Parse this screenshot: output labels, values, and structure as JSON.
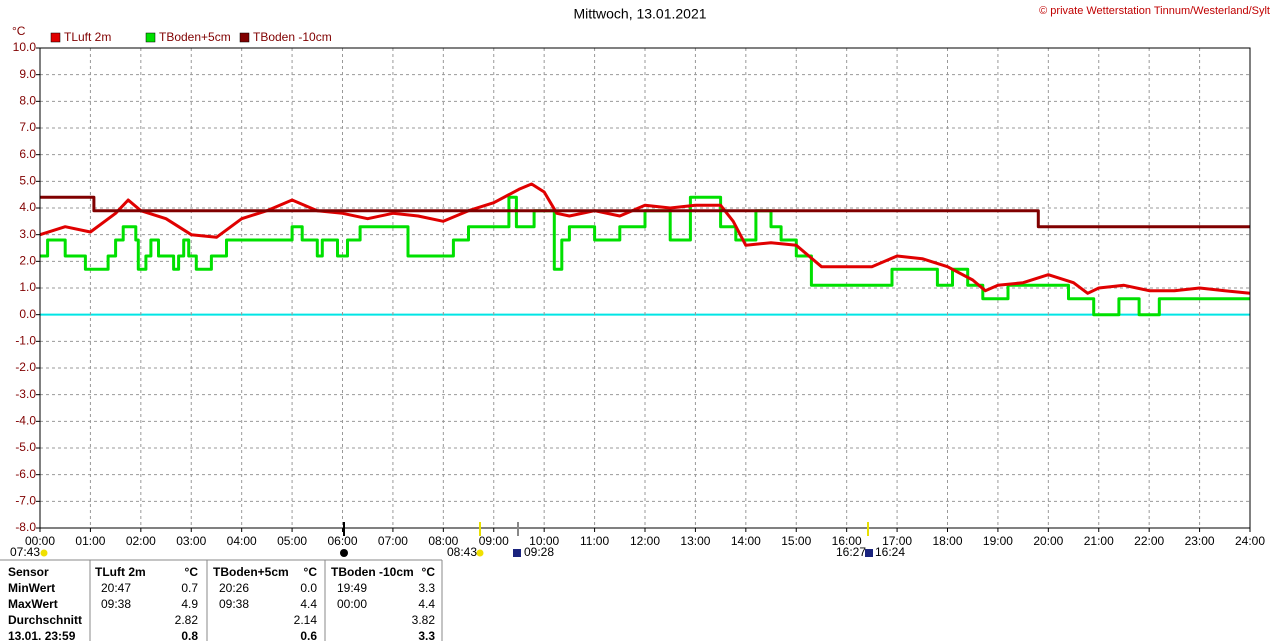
{
  "chart_data": {
    "type": "line",
    "title": "Mittwoch, 13.01.2021",
    "copyright": "© private Wetterstation Tinnum/Westerland/Sylt",
    "y_unit": "°C",
    "xlim": [
      0,
      24
    ],
    "ylim": [
      -8,
      10
    ],
    "grid": true,
    "zero_line_color": "#00e5e5",
    "xticks": [
      {
        "value": 0,
        "label": "00:00"
      },
      {
        "value": 1,
        "label": "01:00"
      },
      {
        "value": 2,
        "label": "02:00"
      },
      {
        "value": 3,
        "label": "03:00"
      },
      {
        "value": 4,
        "label": "04:00"
      },
      {
        "value": 5,
        "label": "05:00"
      },
      {
        "value": 6,
        "label": "06:00"
      },
      {
        "value": 7,
        "label": "07:00"
      },
      {
        "value": 8,
        "label": "08:00"
      },
      {
        "value": 9,
        "label": "09:00"
      },
      {
        "value": 10,
        "label": "10:00"
      },
      {
        "value": 11,
        "label": "11:00"
      },
      {
        "value": 12,
        "label": "12:00"
      },
      {
        "value": 13,
        "label": "13:00"
      },
      {
        "value": 14,
        "label": "14:00"
      },
      {
        "value": 15,
        "label": "15:00"
      },
      {
        "value": 16,
        "label": "16:00"
      },
      {
        "value": 17,
        "label": "17:00"
      },
      {
        "value": 18,
        "label": "18:00"
      },
      {
        "value": 19,
        "label": "19:00"
      },
      {
        "value": 20,
        "label": "20:00"
      },
      {
        "value": 21,
        "label": "21:00"
      },
      {
        "value": 22,
        "label": "22:00"
      },
      {
        "value": 23,
        "label": "23:00"
      },
      {
        "value": 24,
        "label": "24:00"
      }
    ],
    "yticks": [
      {
        "value": 10,
        "label": "10.0"
      },
      {
        "value": 9,
        "label": "9.0"
      },
      {
        "value": 8,
        "label": "8.0"
      },
      {
        "value": 7,
        "label": "7.0"
      },
      {
        "value": 6,
        "label": "6.0"
      },
      {
        "value": 5,
        "label": "5.0"
      },
      {
        "value": 4,
        "label": "4.0"
      },
      {
        "value": 3,
        "label": "3.0"
      },
      {
        "value": 2,
        "label": "2.0"
      },
      {
        "value": 1,
        "label": "1.0"
      },
      {
        "value": 0,
        "label": "0.0"
      },
      {
        "value": -1,
        "label": "-1.0"
      },
      {
        "value": -2,
        "label": "-2.0"
      },
      {
        "value": -3,
        "label": "-3.0"
      },
      {
        "value": -4,
        "label": "-4.0"
      },
      {
        "value": -5,
        "label": "-5.0"
      },
      {
        "value": -6,
        "label": "-6.0"
      },
      {
        "value": -7,
        "label": "-7.0"
      },
      {
        "value": -8,
        "label": "-8.0"
      }
    ],
    "series": [
      {
        "name": "TLuft 2m",
        "color": "#e00000",
        "x": [
          0,
          0.5,
          1,
          1.5,
          1.75,
          2,
          2.5,
          3,
          3.5,
          4,
          4.5,
          5,
          5.5,
          6,
          6.5,
          7,
          7.5,
          8,
          8.5,
          9,
          9.5,
          9.75,
          10,
          10.25,
          10.5,
          11,
          11.5,
          12,
          12.5,
          13,
          13.5,
          13.75,
          14,
          14.5,
          15,
          15.5,
          16,
          16.5,
          17,
          17.5,
          18,
          18.5,
          18.75,
          19,
          19.5,
          20,
          20.5,
          20.78,
          21,
          21.5,
          22,
          22.5,
          23,
          23.5,
          24
        ],
        "values": [
          3.0,
          3.3,
          3.1,
          3.8,
          4.3,
          3.9,
          3.6,
          3.0,
          2.9,
          3.6,
          3.9,
          4.3,
          3.9,
          3.8,
          3.6,
          3.8,
          3.7,
          3.5,
          3.9,
          4.2,
          4.7,
          4.9,
          4.6,
          3.8,
          3.7,
          3.9,
          3.7,
          4.1,
          4.0,
          4.1,
          4.1,
          3.5,
          2.6,
          2.7,
          2.6,
          1.8,
          1.8,
          1.8,
          2.2,
          2.1,
          1.8,
          1.3,
          0.9,
          1.1,
          1.2,
          1.5,
          1.2,
          0.8,
          1.0,
          1.1,
          0.9,
          0.9,
          1.0,
          0.9,
          0.8
        ]
      },
      {
        "name": "TBoden+5cm",
        "color": "#00e000",
        "x": [
          0,
          0.15,
          0.15,
          0.5,
          0.5,
          0.9,
          0.9,
          1.35,
          1.35,
          1.5,
          1.5,
          1.65,
          1.65,
          1.9,
          1.9,
          1.95,
          1.95,
          2.1,
          2.1,
          2.2,
          2.2,
          2.35,
          2.35,
          2.65,
          2.65,
          2.75,
          2.75,
          2.85,
          2.85,
          2.95,
          2.95,
          3.1,
          3.1,
          3.4,
          3.4,
          3.7,
          3.7,
          5.0,
          5.0,
          5.2,
          5.2,
          5.5,
          5.5,
          5.6,
          5.6,
          5.9,
          5.9,
          6.1,
          6.1,
          6.35,
          6.35,
          7.3,
          7.3,
          8.2,
          8.2,
          8.5,
          8.5,
          9.3,
          9.3,
          9.45,
          9.45,
          9.8,
          9.8,
          10.2,
          10.2,
          10.35,
          10.35,
          10.5,
          10.5,
          11.0,
          11.0,
          11.5,
          11.5,
          12.0,
          12.0,
          12.5,
          12.5,
          12.9,
          12.9,
          13.5,
          13.5,
          13.8,
          13.8,
          14.2,
          14.2,
          14.5,
          14.5,
          14.7,
          14.7,
          15.0,
          15.0,
          15.3,
          15.3,
          16.9,
          16.9,
          17.8,
          17.8,
          18.1,
          18.1,
          18.4,
          18.4,
          18.7,
          18.7,
          19.2,
          19.2,
          20.4,
          20.4,
          20.9,
          20.9,
          21.4,
          21.4,
          21.8,
          21.8,
          22.2,
          22.2,
          24.0
        ],
        "values": [
          2.2,
          2.2,
          2.8,
          2.8,
          2.2,
          2.2,
          1.7,
          1.7,
          2.2,
          2.2,
          2.8,
          2.8,
          3.3,
          3.3,
          2.8,
          2.8,
          1.7,
          1.7,
          2.2,
          2.2,
          2.8,
          2.8,
          2.2,
          2.2,
          1.7,
          1.7,
          2.2,
          2.2,
          2.8,
          2.8,
          2.2,
          2.2,
          1.7,
          1.7,
          2.2,
          2.2,
          2.8,
          2.8,
          3.3,
          3.3,
          2.8,
          2.8,
          2.2,
          2.2,
          2.8,
          2.8,
          2.2,
          2.2,
          2.8,
          2.8,
          3.3,
          3.3,
          2.2,
          2.2,
          2.8,
          2.8,
          3.3,
          3.3,
          4.4,
          4.4,
          3.3,
          3.3,
          3.9,
          3.9,
          1.7,
          1.7,
          2.8,
          2.8,
          3.3,
          3.3,
          2.8,
          2.8,
          3.3,
          3.3,
          3.9,
          3.9,
          2.8,
          2.8,
          4.4,
          4.4,
          3.3,
          3.3,
          2.8,
          2.8,
          3.9,
          3.9,
          3.3,
          3.3,
          2.8,
          2.8,
          2.2,
          2.2,
          1.1,
          1.1,
          1.7,
          1.7,
          1.1,
          1.1,
          1.7,
          1.7,
          1.1,
          1.1,
          0.6,
          0.6,
          1.1,
          1.1,
          0.6,
          0.6,
          0.0,
          0.0,
          0.6,
          0.6,
          0.0,
          0.0,
          0.6,
          0.6
        ]
      },
      {
        "name": "TBoden -10cm",
        "color": "#800000",
        "x": [
          0,
          1.07,
          1.07,
          19.8,
          19.8,
          24
        ],
        "values": [
          4.4,
          4.4,
          3.9,
          3.9,
          3.3,
          3.3
        ]
      }
    ],
    "annotations": [
      "07:43",
      "08:43",
      "09:28",
      "16:27",
      "16:24"
    ]
  },
  "stats_table": {
    "header": [
      "Sensor",
      "TLuft 2m",
      "°C",
      "TBoden+5cm",
      "°C",
      "TBoden -10cm",
      "°C"
    ],
    "rows": [
      {
        "label": "MinWert",
        "cells": [
          {
            "time": "20:47",
            "value": "0.7"
          },
          {
            "time": "20:26",
            "value": "0.0"
          },
          {
            "time": "19:49",
            "value": "3.3"
          }
        ]
      },
      {
        "label": "MaxWert",
        "cells": [
          {
            "time": "09:38",
            "value": "4.9"
          },
          {
            "time": "09:38",
            "value": "4.4"
          },
          {
            "time": "00:00",
            "value": "4.4"
          }
        ]
      },
      {
        "label": "Durchschnitt",
        "cells": [
          {
            "value": "2.82"
          },
          {
            "value": "2.14"
          },
          {
            "value": "3.82"
          }
        ]
      },
      {
        "label": "13.01. 23:59",
        "cells": [
          {
            "value": "0.8"
          },
          {
            "value": "0.6"
          },
          {
            "value": "3.3"
          }
        ]
      }
    ]
  }
}
